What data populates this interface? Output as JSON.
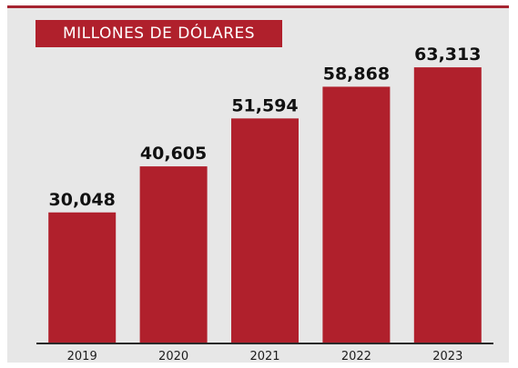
{
  "chart_data": {
    "type": "bar",
    "unit_label": "MILLONES DE DÓLARES",
    "categories": [
      "2019",
      "2020",
      "2021",
      "2022",
      "2023"
    ],
    "values": [
      30048,
      40605,
      51594,
      58868,
      63313
    ],
    "value_labels": [
      "30,048",
      "40,605",
      "51,594",
      "58,868",
      "63,313"
    ],
    "ylim": [
      0,
      70000
    ],
    "grid": false,
    "legend": "none"
  },
  "colors": {
    "bar": "#b0202c",
    "background": "#e7e7e7",
    "accent_rule": "#a52430"
  }
}
